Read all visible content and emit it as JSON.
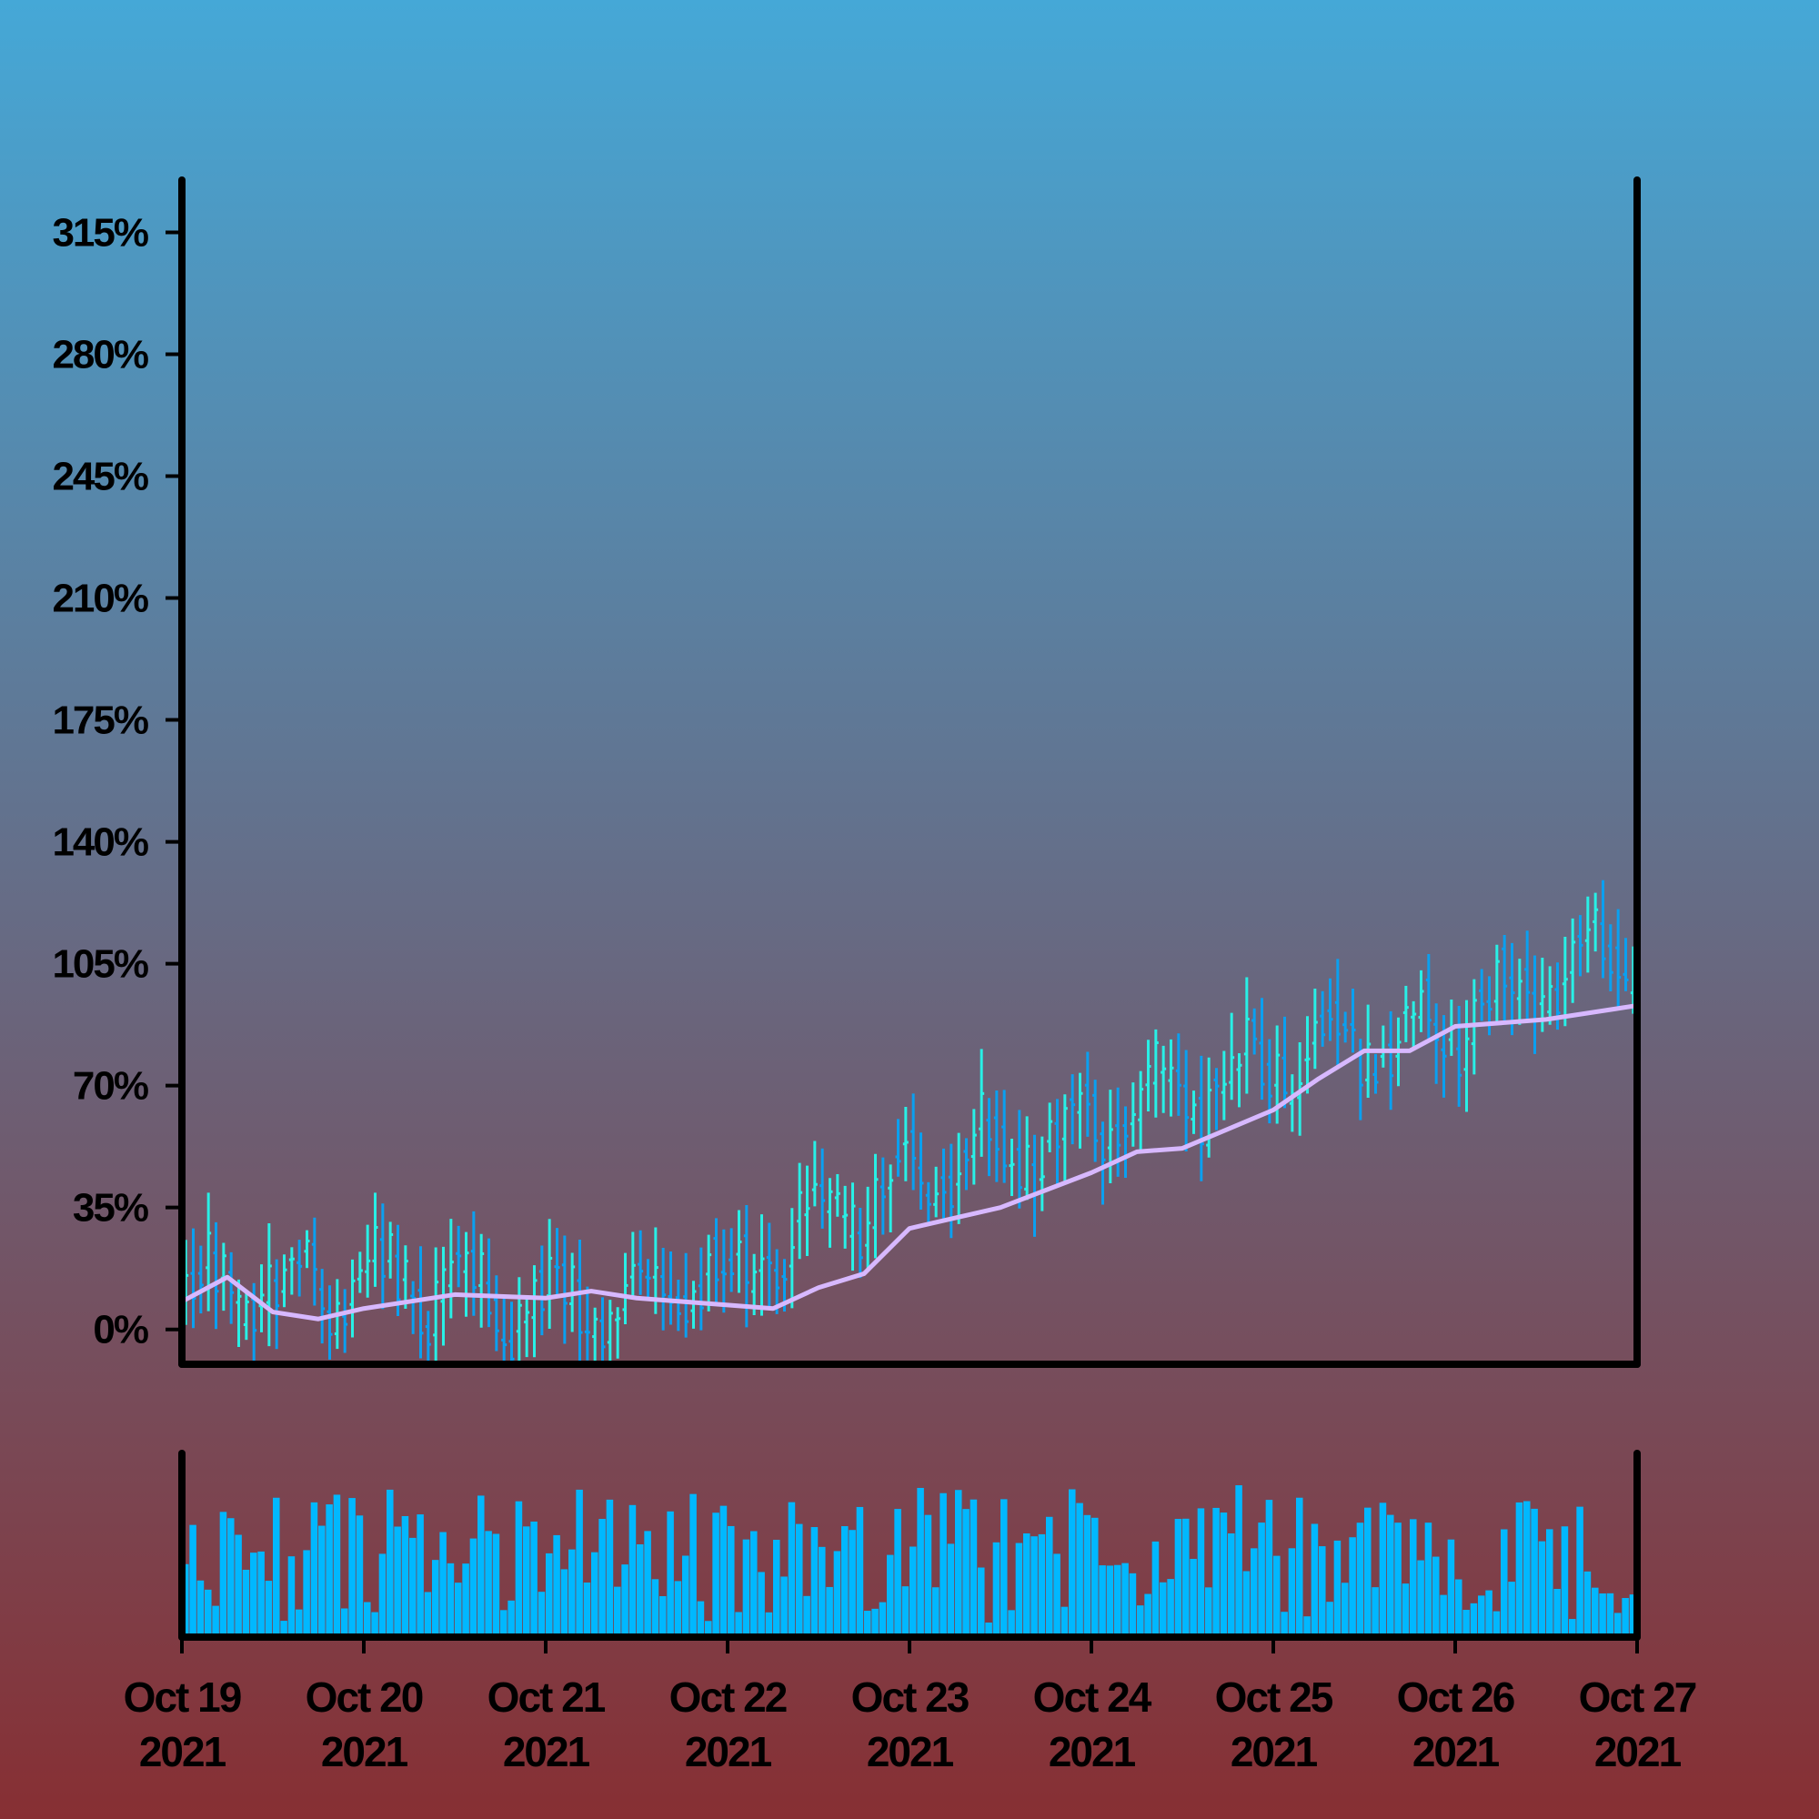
{
  "chart_data": [
    {
      "type": "ohlc",
      "title": "",
      "xlabel": "",
      "ylabel": "",
      "y_unit": "%",
      "ylim": [
        -10,
        330
      ],
      "yticks": [
        0,
        35,
        70,
        105,
        140,
        175,
        210,
        245,
        280,
        315
      ],
      "ytick_labels": [
        "0%",
        "35%",
        "70%",
        "105%",
        "140%",
        "175%",
        "210%",
        "245%",
        "280%",
        "315%"
      ],
      "xlim": [
        "2021-10-19",
        "2021-10-27"
      ],
      "xticks": [
        "2021-10-19",
        "2021-10-20",
        "2021-10-21",
        "2021-10-22",
        "2021-10-23",
        "2021-10-24",
        "2021-10-25",
        "2021-10-26",
        "2021-10-27"
      ],
      "xtick_labels": [
        [
          "Oct 19",
          "2021"
        ],
        [
          "Oct 20",
          "2021"
        ],
        [
          "Oct 21",
          "2021"
        ],
        [
          "Oct 22",
          "2021"
        ],
        [
          "Oct 23",
          "2021"
        ],
        [
          "Oct 24",
          "2021"
        ],
        [
          "Oct 25",
          "2021"
        ],
        [
          "Oct 26",
          "2021"
        ],
        [
          "Oct 27",
          "2021"
        ]
      ],
      "bars_per_day": 24,
      "price_midline": {
        "note": "estimated typical price (%) at each date tick",
        "x": [
          "2021-10-19",
          "2021-10-20",
          "2021-10-21",
          "2021-10-22",
          "2021-10-23",
          "2021-10-24",
          "2021-10-25",
          "2021-10-26",
          "2021-10-27"
        ],
        "y": [
          10,
          15,
          8,
          15,
          45,
          60,
          75,
          90,
          112
        ]
      },
      "series": [
        {
          "kind": "moving-average",
          "color": "#d7b8ff",
          "x": [
            "2021-10-19",
            "2021-10-19 06:00",
            "2021-10-19 12:00",
            "2021-10-19 18:00",
            "2021-10-20",
            "2021-10-20 12:00",
            "2021-10-21",
            "2021-10-21 06:00",
            "2021-10-21 12:00",
            "2021-10-22",
            "2021-10-22 06:00",
            "2021-10-22 12:00",
            "2021-10-22 18:00",
            "2021-10-23",
            "2021-10-23 12:00",
            "2021-10-24",
            "2021-10-24 06:00",
            "2021-10-24 12:00",
            "2021-10-25",
            "2021-10-25 06:00",
            "2021-10-25 12:00",
            "2021-10-25 18:00",
            "2021-10-26",
            "2021-10-26 12:00",
            "2021-10-27"
          ],
          "y": [
            8,
            15,
            5,
            3,
            6,
            10,
            9,
            11,
            9,
            7,
            6,
            12,
            16,
            29,
            35,
            45,
            51,
            52,
            63,
            72,
            80,
            80,
            87,
            89,
            93
          ]
        }
      ],
      "colors": {
        "up": "#28f0e6",
        "down": "#0aa0f0",
        "moving_average": "#d7b8ff",
        "axes": "#000000"
      },
      "grid": false,
      "legend": "none"
    },
    {
      "type": "bar",
      "name": "volume",
      "xlim": [
        "2021-10-19",
        "2021-10-27"
      ],
      "color": "#00b8ff",
      "grid": false,
      "legend": "none",
      "yticks": []
    }
  ],
  "background": {
    "top": "#45a8d7",
    "bottom": "#872f33"
  }
}
